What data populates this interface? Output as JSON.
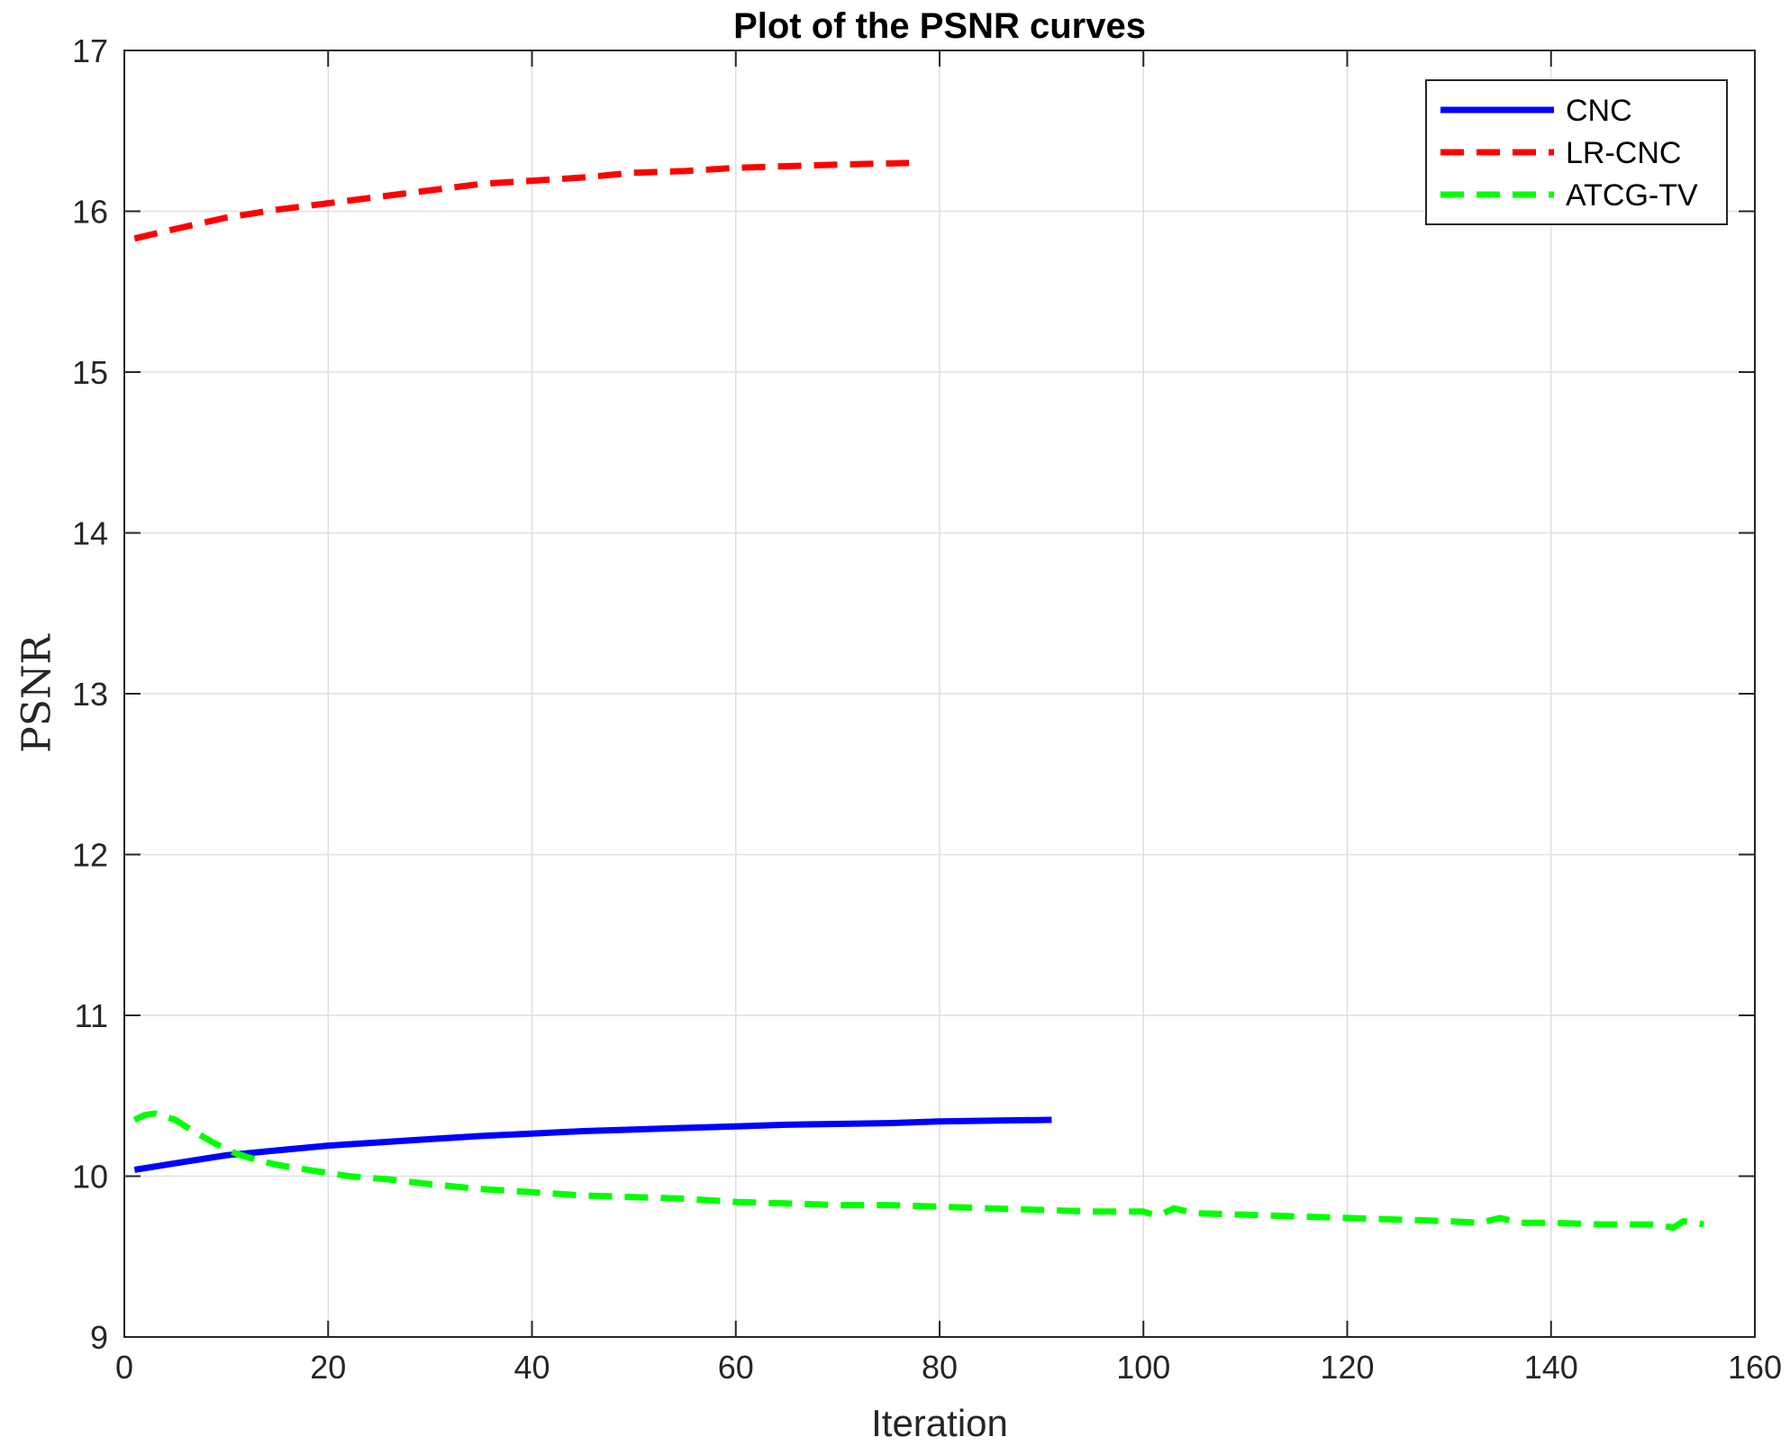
{
  "chart_data": {
    "type": "line",
    "title": "Plot of the PSNR curves",
    "xlabel": "Iteration",
    "ylabel": "PSNR",
    "xlim": [
      0,
      160
    ],
    "ylim": [
      9,
      17
    ],
    "xticks": [
      0,
      20,
      40,
      60,
      80,
      100,
      120,
      140,
      160
    ],
    "yticks": [
      9,
      10,
      11,
      12,
      13,
      14,
      15,
      16,
      17
    ],
    "grid": true,
    "legend_position": "top-right",
    "series": [
      {
        "name": "CNC",
        "color": "#0000ff",
        "style": "solid",
        "x": [
          1,
          5,
          10,
          15,
          20,
          25,
          30,
          35,
          40,
          45,
          50,
          55,
          60,
          65,
          70,
          75,
          80,
          85,
          91
        ],
        "y": [
          10.04,
          10.08,
          10.13,
          10.16,
          10.19,
          10.21,
          10.23,
          10.25,
          10.265,
          10.28,
          10.29,
          10.3,
          10.31,
          10.32,
          10.325,
          10.33,
          10.34,
          10.345,
          10.35
        ]
      },
      {
        "name": "LR-CNC",
        "color": "#ff0000",
        "style": "dashed",
        "x": [
          1,
          5,
          10,
          15,
          20,
          25,
          30,
          35,
          40,
          45,
          50,
          55,
          60,
          65,
          70,
          77
        ],
        "y": [
          15.83,
          15.89,
          15.96,
          16.01,
          16.05,
          16.09,
          16.13,
          16.17,
          16.19,
          16.21,
          16.24,
          16.25,
          16.27,
          16.28,
          16.29,
          16.3
        ]
      },
      {
        "name": "ATCG-TV",
        "color": "#00ff00",
        "style": "dashed",
        "x": [
          1,
          2,
          3,
          5,
          7,
          9,
          11,
          13,
          15,
          18,
          22,
          26,
          30,
          35,
          40,
          45,
          50,
          55,
          60,
          65,
          70,
          75,
          80,
          85,
          90,
          95,
          100,
          101,
          102,
          103,
          105,
          110,
          115,
          120,
          125,
          130,
          133,
          135,
          137,
          140,
          145,
          150,
          152,
          153,
          155
        ],
        "y": [
          10.35,
          10.38,
          10.39,
          10.35,
          10.27,
          10.2,
          10.14,
          10.1,
          10.07,
          10.04,
          10.0,
          9.98,
          9.95,
          9.92,
          9.9,
          9.88,
          9.87,
          9.86,
          9.84,
          9.83,
          9.82,
          9.82,
          9.81,
          9.8,
          9.79,
          9.78,
          9.78,
          9.76,
          9.77,
          9.8,
          9.77,
          9.76,
          9.75,
          9.74,
          9.73,
          9.72,
          9.71,
          9.74,
          9.71,
          9.71,
          9.7,
          9.7,
          9.68,
          9.72,
          9.7
        ]
      }
    ]
  }
}
